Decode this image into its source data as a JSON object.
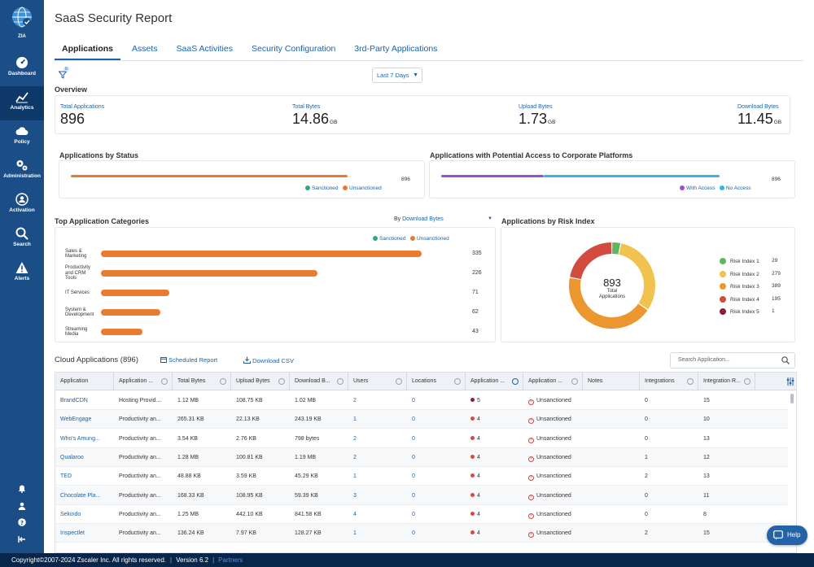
{
  "sidebar": {
    "logo_label": "ZIA",
    "items": [
      {
        "label": "Dashboard",
        "icon": "gauge-icon"
      },
      {
        "label": "Analytics",
        "icon": "chart-icon"
      },
      {
        "label": "Policy",
        "icon": "cloud-icon"
      },
      {
        "label": "Administration",
        "icon": "gears-icon"
      },
      {
        "label": "Activation",
        "icon": "user-circle-icon"
      },
      {
        "label": "Search",
        "icon": "search-icon"
      },
      {
        "label": "Alerts",
        "icon": "warning-icon"
      }
    ],
    "active_index": 1
  },
  "page": {
    "title": "SaaS Security Report",
    "tabs": [
      "Applications",
      "Assets",
      "SaaS Activities",
      "Security Configuration",
      "3rd-Party Applications"
    ],
    "filter_count": "0",
    "date_range": "Last 7 Days"
  },
  "overview": {
    "label": "Overview",
    "stats": [
      {
        "label": "Total Applications",
        "value": "896",
        "unit": ""
      },
      {
        "label": "Total Bytes",
        "value": "14.86",
        "unit": "GB"
      },
      {
        "label": "Upload Bytes",
        "value": "1.73",
        "unit": "GB"
      },
      {
        "label": "Download Bytes",
        "value": "11.45",
        "unit": "GB"
      }
    ]
  },
  "status": {
    "title": "Applications by Status",
    "total": "896",
    "legend": [
      "Sanctioned",
      "Unsanctioned"
    ],
    "colors": {
      "sanctioned": "#2aa88a",
      "unsanctioned": "#e97b31"
    }
  },
  "access": {
    "title": "Applications with Potential Access to Corporate Platforms",
    "total": "896",
    "legend": [
      "With Access",
      "No Access"
    ],
    "colors": {
      "with": "#9b4fd0",
      "no": "#35b6dc"
    }
  },
  "categories": {
    "title": "Top Application Categories",
    "sort_prefix": "By ",
    "sort_value": "Download Bytes",
    "legend": [
      "Sanctioned",
      "Unsanctioned"
    ]
  },
  "risk": {
    "title": "Applications by Risk Index",
    "center_value": "893",
    "center_label_1": "Total",
    "center_label_2": "Applications"
  },
  "chart_data": [
    {
      "type": "bar",
      "title": "Applications by Status",
      "categories": [
        "Applications"
      ],
      "series": [
        {
          "name": "Sanctioned",
          "values": [
            0
          ]
        },
        {
          "name": "Unsanctioned",
          "values": [
            896
          ]
        }
      ]
    },
    {
      "type": "bar",
      "title": "Applications with Potential Access to Corporate Platforms",
      "categories": [
        "Applications"
      ],
      "series": [
        {
          "name": "With Access",
          "values": [
            330
          ]
        },
        {
          "name": "No Access",
          "values": [
            566
          ]
        }
      ]
    },
    {
      "type": "bar",
      "title": "Top Application Categories",
      "categories": [
        [
          "Sales &",
          "Marketing"
        ],
        [
          "Productivity",
          "and CRM",
          "Tools"
        ],
        [
          "IT Services"
        ],
        [
          "System &",
          "Development"
        ],
        [
          "Streaming",
          "Media"
        ]
      ],
      "values": [
        335,
        226,
        71,
        62,
        43
      ],
      "xlim": [
        0,
        355
      ]
    },
    {
      "type": "pie",
      "title": "Applications by Risk Index",
      "labels": [
        "Risk Index 1",
        "Risk Index 2",
        "Risk Index 3",
        "Risk Index 4",
        "Risk Index 5"
      ],
      "values": [
        29,
        279,
        389,
        195,
        1
      ],
      "colors": [
        "#5cb85c",
        "#f2c24f",
        "#ec9630",
        "#d24b3e",
        "#8c1f3f"
      ]
    }
  ],
  "cloud": {
    "title": "Cloud Applications (896)",
    "scheduled_report": "Scheduled Report",
    "download_csv": "Download CSV",
    "search_placeholder": "Search Application...",
    "columns": [
      "Application",
      "Application ...",
      "Total Bytes",
      "Upload Bytes",
      "Download B...",
      "Users",
      "Locations",
      "Application ...",
      "Application ...",
      "Notes",
      "Integrations",
      "Integration R..."
    ],
    "rows": [
      {
        "app": "BrandCDN",
        "category": "Hosting Provid...",
        "total": "1.12 MB",
        "upload": "108.75 KB",
        "download": "1.02 MB",
        "users": "2",
        "locations": "0",
        "risk": "5",
        "status": "Unsanctioned",
        "notes": "",
        "integrations": "0",
        "integration_r": "15"
      },
      {
        "app": "WebEngage",
        "category": "Productivity an...",
        "total": "265.31 KB",
        "upload": "22.13 KB",
        "download": "243.19 KB",
        "users": "1",
        "locations": "0",
        "risk": "4",
        "status": "Unsanctioned",
        "notes": "",
        "integrations": "0",
        "integration_r": "10"
      },
      {
        "app": "Who's Amung...",
        "category": "Productivity an...",
        "total": "3.54 KB",
        "upload": "2.76 KB",
        "download": "798 bytes",
        "users": "2",
        "locations": "0",
        "risk": "4",
        "status": "Unsanctioned",
        "notes": "",
        "integrations": "0",
        "integration_r": "13"
      },
      {
        "app": "Qualaroo",
        "category": "Productivity an...",
        "total": "1.28 MB",
        "upload": "100.81 KB",
        "download": "1.19 MB",
        "users": "2",
        "locations": "0",
        "risk": "4",
        "status": "Unsanctioned",
        "notes": "",
        "integrations": "1",
        "integration_r": "12"
      },
      {
        "app": "TED",
        "category": "Productivity an...",
        "total": "48.88 KB",
        "upload": "3.59 KB",
        "download": "45.29 KB",
        "users": "1",
        "locations": "0",
        "risk": "4",
        "status": "Unsanctioned",
        "notes": "",
        "integrations": "2",
        "integration_r": "13"
      },
      {
        "app": "Chocolate Pla...",
        "category": "Productivity an...",
        "total": "168.33 KB",
        "upload": "108.95 KB",
        "download": "59.39 KB",
        "users": "3",
        "locations": "0",
        "risk": "4",
        "status": "Unsanctioned",
        "notes": "",
        "integrations": "0",
        "integration_r": "11"
      },
      {
        "app": "Sekindo",
        "category": "Productivity an...",
        "total": "1.25 MB",
        "upload": "442.10 KB",
        "download": "841.58 KB",
        "users": "4",
        "locations": "0",
        "risk": "4",
        "status": "Unsanctioned",
        "notes": "",
        "integrations": "0",
        "integration_r": "8"
      },
      {
        "app": "Inspectlet",
        "category": "Productivity an...",
        "total": "136.24 KB",
        "upload": "7.97 KB",
        "download": "128.27 KB",
        "users": "1",
        "locations": "0",
        "risk": "4",
        "status": "Unsanctioned",
        "notes": "",
        "integrations": "2",
        "integration_r": "15"
      }
    ]
  },
  "footer": {
    "copyright": "Copyright©2007-2024 Zscaler Inc. All rights reserved.",
    "version": "Version 6.2",
    "partners": "Partners"
  },
  "help_label": "Help"
}
